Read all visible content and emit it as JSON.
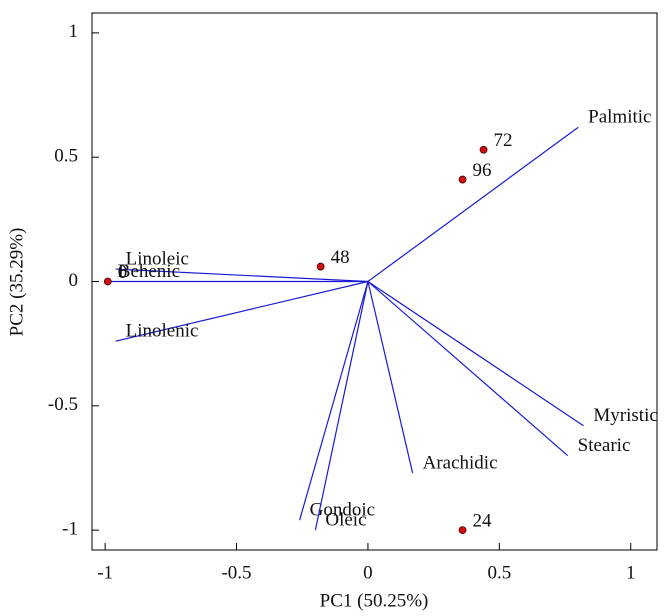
{
  "chart_data": {
    "type": "biplot",
    "x_label": "PC1 (50.25%)",
    "y_label": "PC2 (35.29%)",
    "xlim": [
      -1.05,
      1.1
    ],
    "ylim": [
      -1.08,
      1.08
    ],
    "xticks": [
      -1,
      -0.5,
      0,
      0.5,
      1
    ],
    "yticks": [
      -1,
      -0.5,
      0,
      0.5,
      1
    ],
    "points": {
      "color": "#d01010",
      "labels": [
        "72",
        "96",
        "48",
        "0",
        "24"
      ],
      "x": [
        0.44,
        0.36,
        -0.18,
        -0.99,
        0.36
      ],
      "y": [
        0.53,
        0.41,
        0.06,
        0.0,
        -1.0
      ]
    },
    "vectors": {
      "color": "#1a1ad6",
      "labels": [
        "Palmitic",
        "Myristic",
        "Stearic",
        "Arachidic",
        "Gondoic",
        "Oleic",
        "Linolenic",
        "Linoleic",
        "Behenic"
      ],
      "x": [
        0.8,
        0.82,
        0.76,
        0.17,
        -0.26,
        -0.2,
        -0.96,
        -0.96,
        -0.99
      ],
      "y": [
        0.62,
        -0.58,
        -0.7,
        -0.77,
        -0.96,
        -1.0,
        -0.24,
        0.05,
        0.0
      ]
    }
  }
}
